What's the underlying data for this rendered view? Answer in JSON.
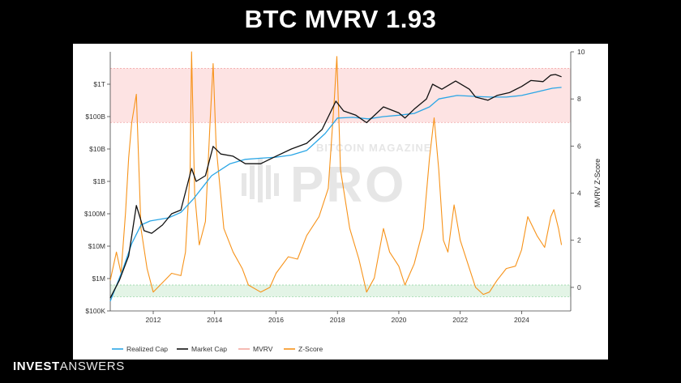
{
  "title": "BTC MVRV 1.93",
  "brand": {
    "bold": "INVEST",
    "light": "ANSWERS"
  },
  "watermark": {
    "line1": "BITCOIN MAGAZINE",
    "line2": "PRO"
  },
  "chart_data": {
    "type": "line",
    "x_ticks": [
      "2012",
      "2014",
      "2016",
      "2018",
      "2020",
      "2022",
      "2024"
    ],
    "x_range": [
      2010.6,
      2025.6
    ],
    "left_axis": {
      "scale": "log",
      "range": [
        100000,
        10000000000000
      ],
      "ticks": [
        {
          "label": "$100K",
          "value": 100000
        },
        {
          "label": "$1M",
          "value": 1000000
        },
        {
          "label": "$10M",
          "value": 10000000
        },
        {
          "label": "$100M",
          "value": 100000000
        },
        {
          "label": "$1B",
          "value": 1000000000
        },
        {
          "label": "$10B",
          "value": 10000000000
        },
        {
          "label": "$100B",
          "value": 100000000000
        },
        {
          "label": "$1T",
          "value": 1000000000000
        }
      ]
    },
    "right_axis": {
      "label": "MVRV Z-Score",
      "range": [
        -1,
        10
      ],
      "ticks": [
        "0",
        "2",
        "4",
        "6",
        "8",
        "10"
      ]
    },
    "bands": [
      {
        "name": "overvalued",
        "z_from": 7,
        "z_to": 9.3,
        "color": "#fde3e3",
        "border": "#f1a3a3"
      },
      {
        "name": "undervalued",
        "z_from": -0.4,
        "z_to": 0.1,
        "color": "#e3f4e6",
        "border": "#8fd19e"
      }
    ],
    "legend": [
      "Realized Cap",
      "Market Cap",
      "MVRV",
      "Z-Score"
    ],
    "colors": {
      "realized": "#2aa6e6",
      "market": "#111111",
      "mvrv": "#f4a9a0",
      "zscore": "#f7931a"
    },
    "series": [
      {
        "name": "Realized Cap",
        "points": [
          [
            2010.6,
            200000
          ],
          [
            2011.0,
            1800000
          ],
          [
            2011.3,
            12000000
          ],
          [
            2011.6,
            45000000
          ],
          [
            2011.9,
            60000000
          ],
          [
            2012.5,
            75000000
          ],
          [
            2012.9,
            110000000
          ],
          [
            2013.3,
            280000000
          ],
          [
            2013.9,
            1500000000
          ],
          [
            2014.5,
            3500000000
          ],
          [
            2015.0,
            4800000000
          ],
          [
            2015.5,
            5200000000
          ],
          [
            2016.0,
            5600000000
          ],
          [
            2016.5,
            6500000000
          ],
          [
            2017.0,
            9000000000
          ],
          [
            2017.6,
            30000000000
          ],
          [
            2018.0,
            90000000000
          ],
          [
            2018.5,
            95000000000
          ],
          [
            2019.0,
            85000000000
          ],
          [
            2019.5,
            100000000000
          ],
          [
            2020.0,
            110000000000
          ],
          [
            2020.5,
            125000000000
          ],
          [
            2021.0,
            200000000000
          ],
          [
            2021.3,
            350000000000
          ],
          [
            2021.9,
            450000000000
          ],
          [
            2022.5,
            420000000000
          ],
          [
            2023.0,
            400000000000
          ],
          [
            2023.5,
            400000000000
          ],
          [
            2024.0,
            450000000000
          ],
          [
            2024.5,
            580000000000
          ],
          [
            2025.0,
            750000000000
          ],
          [
            2025.3,
            800000000000
          ]
        ]
      },
      {
        "name": "Market Cap",
        "points": [
          [
            2010.6,
            250000
          ],
          [
            2010.9,
            900000
          ],
          [
            2011.2,
            5000000
          ],
          [
            2011.45,
            180000000
          ],
          [
            2011.7,
            30000000
          ],
          [
            2011.95,
            25000000
          ],
          [
            2012.3,
            45000000
          ],
          [
            2012.6,
            100000000
          ],
          [
            2012.9,
            130000000
          ],
          [
            2013.25,
            2500000000
          ],
          [
            2013.4,
            1000000000
          ],
          [
            2013.7,
            1500000000
          ],
          [
            2013.95,
            12000000000
          ],
          [
            2014.2,
            7000000000
          ],
          [
            2014.6,
            6000000000
          ],
          [
            2015.0,
            3500000000
          ],
          [
            2015.5,
            3500000000
          ],
          [
            2016.0,
            6000000000
          ],
          [
            2016.5,
            10000000000
          ],
          [
            2017.0,
            15000000000
          ],
          [
            2017.5,
            40000000000
          ],
          [
            2017.95,
            300000000000
          ],
          [
            2018.2,
            150000000000
          ],
          [
            2018.6,
            110000000000
          ],
          [
            2018.95,
            65000000000
          ],
          [
            2019.5,
            200000000000
          ],
          [
            2020.0,
            130000000000
          ],
          [
            2020.2,
            90000000000
          ],
          [
            2020.5,
            170000000000
          ],
          [
            2020.9,
            350000000000
          ],
          [
            2021.1,
            1000000000000
          ],
          [
            2021.4,
            700000000000
          ],
          [
            2021.85,
            1250000000000
          ],
          [
            2022.3,
            700000000000
          ],
          [
            2022.5,
            400000000000
          ],
          [
            2022.9,
            320000000000
          ],
          [
            2023.2,
            450000000000
          ],
          [
            2023.6,
            550000000000
          ],
          [
            2024.0,
            850000000000
          ],
          [
            2024.3,
            1300000000000
          ],
          [
            2024.7,
            1200000000000
          ],
          [
            2024.95,
            1900000000000
          ],
          [
            2025.1,
            2000000000000
          ],
          [
            2025.3,
            1700000000000
          ]
        ]
      },
      {
        "name": "Z-Score",
        "points": [
          [
            2010.6,
            0.3
          ],
          [
            2010.8,
            1.5
          ],
          [
            2010.95,
            0.6
          ],
          [
            2011.1,
            3.2
          ],
          [
            2011.2,
            5.5
          ],
          [
            2011.3,
            7.0
          ],
          [
            2011.45,
            8.2
          ],
          [
            2011.6,
            2.5
          ],
          [
            2011.8,
            0.8
          ],
          [
            2012.0,
            -0.2
          ],
          [
            2012.3,
            0.2
          ],
          [
            2012.6,
            0.6
          ],
          [
            2012.9,
            0.5
          ],
          [
            2013.05,
            1.5
          ],
          [
            2013.2,
            5.0
          ],
          [
            2013.25,
            10.0
          ],
          [
            2013.35,
            4.0
          ],
          [
            2013.5,
            1.8
          ],
          [
            2013.7,
            2.8
          ],
          [
            2013.85,
            7.0
          ],
          [
            2013.95,
            9.5
          ],
          [
            2014.05,
            6.0
          ],
          [
            2014.3,
            2.5
          ],
          [
            2014.6,
            1.5
          ],
          [
            2014.9,
            0.8
          ],
          [
            2015.1,
            0.1
          ],
          [
            2015.5,
            -0.2
          ],
          [
            2015.8,
            0.0
          ],
          [
            2016.0,
            0.6
          ],
          [
            2016.4,
            1.3
          ],
          [
            2016.7,
            1.2
          ],
          [
            2017.0,
            2.2
          ],
          [
            2017.4,
            3.0
          ],
          [
            2017.7,
            4.2
          ],
          [
            2017.9,
            8.0
          ],
          [
            2017.98,
            9.8
          ],
          [
            2018.1,
            5.0
          ],
          [
            2018.4,
            2.5
          ],
          [
            2018.7,
            1.2
          ],
          [
            2018.95,
            -0.2
          ],
          [
            2019.2,
            0.4
          ],
          [
            2019.5,
            2.5
          ],
          [
            2019.7,
            1.5
          ],
          [
            2020.0,
            0.9
          ],
          [
            2020.2,
            0.1
          ],
          [
            2020.5,
            1.0
          ],
          [
            2020.8,
            2.5
          ],
          [
            2021.0,
            5.5
          ],
          [
            2021.15,
            7.2
          ],
          [
            2021.3,
            5.0
          ],
          [
            2021.45,
            2.0
          ],
          [
            2021.6,
            1.5
          ],
          [
            2021.8,
            3.5
          ],
          [
            2022.0,
            2.0
          ],
          [
            2022.3,
            0.8
          ],
          [
            2022.5,
            0.0
          ],
          [
            2022.75,
            -0.3
          ],
          [
            2022.95,
            -0.2
          ],
          [
            2023.2,
            0.3
          ],
          [
            2023.5,
            0.8
          ],
          [
            2023.8,
            0.9
          ],
          [
            2024.0,
            1.6
          ],
          [
            2024.2,
            3.0
          ],
          [
            2024.5,
            2.2
          ],
          [
            2024.75,
            1.7
          ],
          [
            2024.95,
            3.0
          ],
          [
            2025.05,
            3.3
          ],
          [
            2025.2,
            2.5
          ],
          [
            2025.3,
            1.8
          ]
        ]
      }
    ]
  }
}
